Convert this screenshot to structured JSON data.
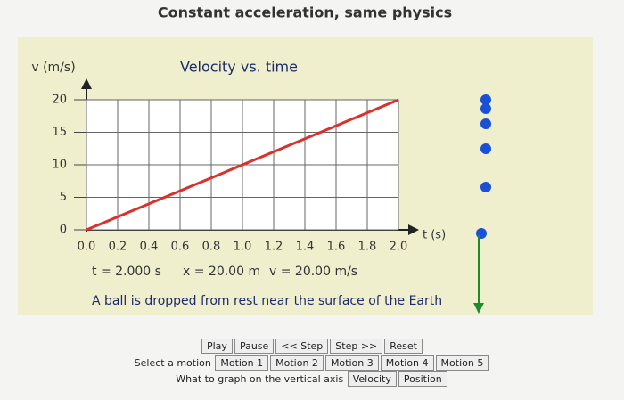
{
  "header": {
    "title": "Constant acceleration, same physics"
  },
  "chart_data": {
    "type": "line",
    "title": "Velocity vs. time",
    "y_label": "v (m/s)",
    "x_label": "t (s)",
    "x": [
      0,
      2
    ],
    "values": [
      0,
      20
    ],
    "color": "#d9312b",
    "xlim": [
      0,
      2
    ],
    "ylim": [
      0,
      20
    ],
    "xticks": [
      {
        "value": 0,
        "label": "0.0"
      },
      0.2,
      0.4,
      0.6,
      0.8,
      {
        "value": 1,
        "label": "1.0"
      },
      1.2,
      1.4,
      1.6,
      1.8,
      {
        "value": 2,
        "label": "2.0"
      }
    ],
    "yticks": [
      0,
      5,
      10,
      15,
      20
    ],
    "grid": true
  },
  "readout": {
    "time": "t = 2.000 s",
    "position": "x = 20.00 m",
    "velocity": "v = 20.00 m/s"
  },
  "caption": "A ball is dropped from rest near the surface of the Earth",
  "controls": {
    "buttons": [
      "Play",
      "Pause",
      "<< Step",
      "Step >>",
      "Reset"
    ],
    "motion_label": "Select a motion",
    "motions": [
      "Motion 1",
      "Motion 2",
      "Motion 3",
      "Motion 4",
      "Motion 5"
    ],
    "axis_label": "What to graph on the vertical axis",
    "axis_options": [
      "Velocity",
      "Position"
    ]
  }
}
